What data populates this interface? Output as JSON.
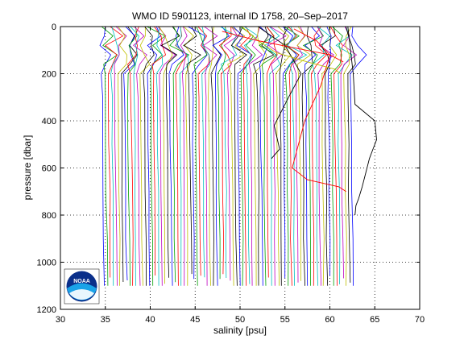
{
  "chart_data": {
    "type": "line",
    "title": "WMO ID 5901123, internal ID 1758, 20–Sep–2017",
    "xlabel": "salinity [psu]",
    "ylabel": "pressure [dbar]",
    "xlim": [
      30,
      70
    ],
    "ylim": [
      0,
      1200
    ],
    "y_reversed": true,
    "xticks": [
      30,
      35,
      40,
      45,
      50,
      55,
      60,
      65,
      70
    ],
    "yticks": [
      0,
      200,
      400,
      600,
      800,
      1000,
      1200
    ],
    "grid": true,
    "logo_text": "NOAA",
    "profile_colors": [
      "#0000ff",
      "#00a000",
      "#ff0000",
      "#00bfbf",
      "#bf00bf",
      "#bfbf00",
      "#000000"
    ],
    "profiles": {
      "offset_start": 34.6,
      "offset_step": 0.36,
      "count": 78,
      "base_shape": {
        "pressure": [
          0,
          40,
          80,
          120,
          160,
          200,
          300,
          500,
          700,
          900,
          1100
        ],
        "salinity_delta": [
          0.3,
          0.9,
          0.2,
          1.1,
          0.4,
          0.0,
          0.05,
          0.1,
          0.15,
          0.2,
          0.25
        ]
      },
      "max_pressure_min": 1050,
      "max_pressure_max": 1175
    },
    "outliers": [
      {
        "color": "#000000",
        "pressure": [
          0,
          100,
          200,
          330,
          400,
          480,
          520,
          560,
          620,
          680,
          730,
          760,
          800
        ],
        "salinity": [
          62.0,
          62.3,
          62.6,
          62.8,
          65.0,
          65.2,
          64.8,
          64.4,
          64.0,
          63.6,
          63.2,
          62.9,
          62.8
        ]
      },
      {
        "color": "#ff0000",
        "pressure": [
          10,
          60,
          120,
          250,
          400,
          600,
          650,
          680,
          700
        ],
        "salinity": [
          56.0,
          58.5,
          60.0,
          59.0,
          57.2,
          55.8,
          57.5,
          61.0,
          61.8
        ]
      },
      {
        "color": "#000000",
        "pressure": [
          0,
          80,
          200,
          300,
          420,
          520,
          560
        ],
        "salinity": [
          52.0,
          55.0,
          56.8,
          55.4,
          53.8,
          54.4,
          53.5
        ]
      },
      {
        "color": "#bfbf00",
        "pressure": [
          0,
          60,
          110,
          150,
          180,
          200
        ],
        "salinity": [
          50.2,
          52.0,
          54.0,
          57.5,
          60.5,
          61.2
        ]
      },
      {
        "color": "#ff0000",
        "pressure": [
          20,
          60,
          90,
          120,
          150
        ],
        "salinity": [
          48.0,
          52.0,
          56.0,
          60.0,
          61.5
        ]
      }
    ]
  }
}
